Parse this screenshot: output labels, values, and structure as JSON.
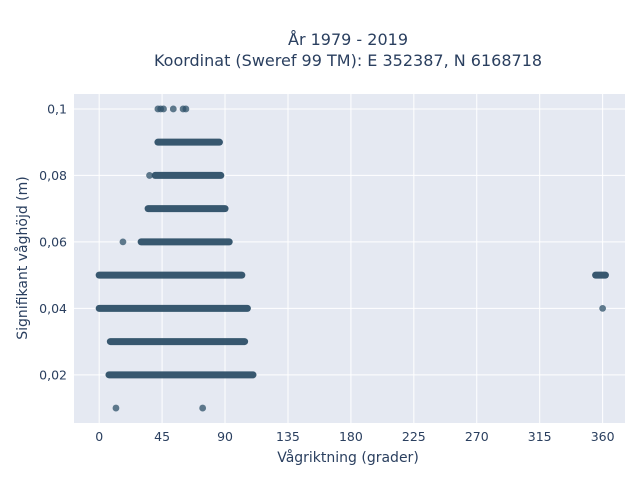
{
  "chart_data": {
    "type": "scatter",
    "title_lines": [
      "År 1979 - 2019",
      "Koordinat (Sweref 99 TM): E 352387, N 6168718"
    ],
    "xlabel": "Vågriktning (grader)",
    "ylabel": "Signifikant våghöjd (m)",
    "xlim": [
      -18,
      376
    ],
    "ylim": [
      0.0055,
      0.1045
    ],
    "x_ticks": [
      0,
      45,
      90,
      135,
      180,
      225,
      270,
      315,
      360
    ],
    "y_ticks": [
      0.02,
      0.04,
      0.06,
      0.08,
      0.1
    ],
    "x_tick_labels": [
      "0",
      "45",
      "90",
      "135",
      "180",
      "225",
      "270",
      "315",
      "360"
    ],
    "y_tick_labels": [
      "0,02",
      "0,04",
      "0,06",
      "0,08",
      "0,1"
    ],
    "grid": true,
    "marker_color": "#2e5068",
    "plot_background": "#e5e9f2",
    "dense_runs": [
      {
        "y": 0.02,
        "x_from": 7,
        "x_to": 110
      },
      {
        "y": 0.03,
        "x_from": 8,
        "x_to": 104
      },
      {
        "y": 0.04,
        "x_from": 0,
        "x_to": 106
      },
      {
        "y": 0.05,
        "x_from": 0,
        "x_to": 102
      },
      {
        "y": 0.05,
        "x_from": 355,
        "x_to": 362
      },
      {
        "y": 0.06,
        "x_from": 30,
        "x_to": 93
      },
      {
        "y": 0.07,
        "x_from": 35,
        "x_to": 90
      },
      {
        "y": 0.08,
        "x_from": 40,
        "x_to": 87
      },
      {
        "y": 0.09,
        "x_from": 42,
        "x_to": 86
      }
    ],
    "sparse_points": [
      {
        "x": 12,
        "y": 0.01
      },
      {
        "x": 74,
        "y": 0.01
      },
      {
        "x": 17,
        "y": 0.06
      },
      {
        "x": 36,
        "y": 0.08
      },
      {
        "x": 42,
        "y": 0.1
      },
      {
        "x": 44,
        "y": 0.1
      },
      {
        "x": 46,
        "y": 0.1
      },
      {
        "x": 53,
        "y": 0.1
      },
      {
        "x": 60,
        "y": 0.1
      },
      {
        "x": 62,
        "y": 0.1
      },
      {
        "x": 360,
        "y": 0.04
      }
    ]
  }
}
